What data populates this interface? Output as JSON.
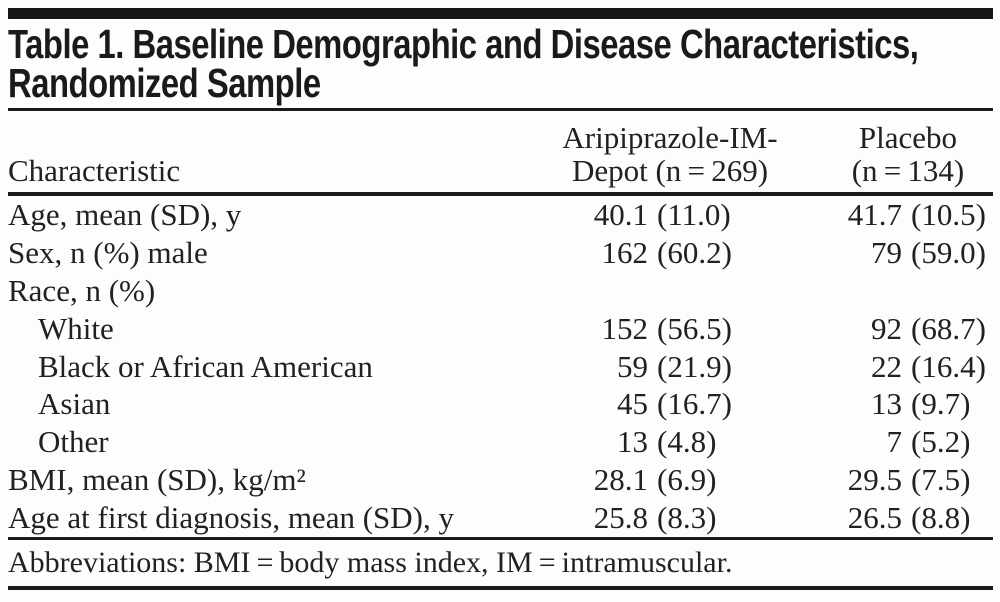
{
  "title": {
    "line1": "Table 1. Baseline Demographic and Disease Characteristics,",
    "line2": "Randomized Sample"
  },
  "table": {
    "column_headers": {
      "characteristic": "Characteristic",
      "treatment_line1": "Aripiprazole-IM-",
      "treatment_line2": "Depot (n = 269)",
      "placebo_line1": "Placebo",
      "placebo_line2": "(n = 134)"
    },
    "rows": [
      {
        "label": "Age, mean (SD), y",
        "t_n": "40.1",
        "t_pct": "(11.0)",
        "p_n": "41.7",
        "p_pct": "(10.5)"
      },
      {
        "label": "Sex, n (%) male",
        "t_n": "162",
        "t_pct": "(60.2)",
        "p_n": "79",
        "p_pct": "(59.0)"
      },
      {
        "label": "Race, n (%)",
        "t_n": "",
        "t_pct": "",
        "p_n": "",
        "p_pct": ""
      },
      {
        "label": "White",
        "t_n": "152",
        "t_pct": "(56.5)",
        "p_n": "92",
        "p_pct": "(68.7)"
      },
      {
        "label": "Black or African American",
        "t_n": "59",
        "t_pct": "(21.9)",
        "p_n": "22",
        "p_pct": "(16.4)"
      },
      {
        "label": "Asian",
        "t_n": "45",
        "t_pct": "(16.7)",
        "p_n": "13",
        "p_pct": "(9.7)"
      },
      {
        "label": "Other",
        "t_n": "13",
        "t_pct": "(4.8)",
        "p_n": "7",
        "p_pct": "(5.2)"
      },
      {
        "label": "BMI, mean (SD), kg/m²",
        "t_n": "28.1",
        "t_pct": "(6.9)",
        "p_n": "29.5",
        "p_pct": "(7.5)"
      },
      {
        "label": "Age at first diagnosis, mean (SD), y",
        "t_n": "25.8",
        "t_pct": "(8.3)",
        "p_n": "26.5",
        "p_pct": "(8.8)"
      }
    ],
    "footnote": "Abbreviations: BMI = body mass index, IM = intramuscular."
  },
  "colors": {
    "rule": "#1a1a1a",
    "text": "#212121",
    "background": "#fdfdfd"
  }
}
